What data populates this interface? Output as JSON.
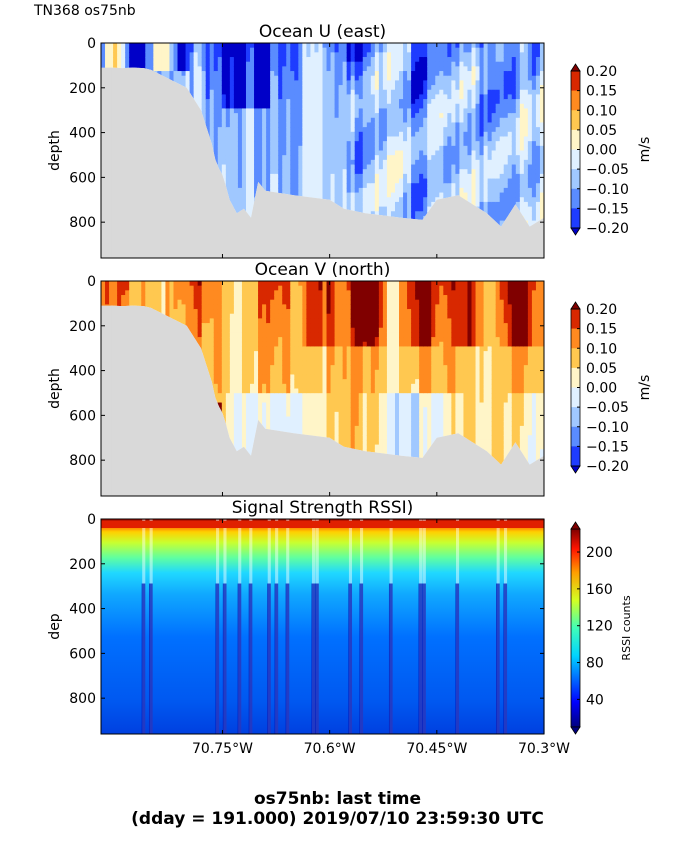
{
  "header": {
    "cruise_label": "TN368 os75nb"
  },
  "footer": {
    "line1": "os75nb: last time",
    "line2": "(dday = 191.000) 2019/07/10 23:59:30 UTC"
  },
  "colors": {
    "bathymetry": "#d9d9d9",
    "background": "#ffffff"
  },
  "chart_data": [
    {
      "type": "heatmap",
      "title": "Ocean U (east)",
      "ylabel": "depth",
      "xlim": [
        -70.92,
        -70.3
      ],
      "ylim": [
        960,
        0
      ],
      "ytick_labels": [
        "0",
        "200",
        "400",
        "600",
        "800"
      ],
      "yticks": [
        0,
        200,
        400,
        600,
        800
      ],
      "xticks": [
        -70.75,
        -70.6,
        -70.45,
        -70.3
      ],
      "colorbar": {
        "label": "m/s",
        "range": [
          -0.2,
          0.2
        ],
        "tick_labels": [
          "0.20",
          "0.15",
          "0.10",
          "0.05",
          "0.00",
          "−0.05",
          "−0.10",
          "−0.15",
          "−0.20"
        ],
        "levels": [
          -0.2,
          -0.15,
          -0.1,
          -0.05,
          0,
          0.05,
          0.1,
          0.15,
          0.2
        ],
        "colors": [
          "#0000c8",
          "#1e3cff",
          "#5a8cff",
          "#a0c8ff",
          "#e0f0ff",
          "#fff5c8",
          "#ffc850",
          "#ff8a20",
          "#d82800",
          "#800000"
        ]
      },
      "bottom_depth_profile": {
        "lon": [
          -70.92,
          -70.912,
          -70.905,
          -70.89,
          -70.875,
          -70.86,
          -70.85,
          -70.8,
          -70.78,
          -70.775,
          -70.77,
          -70.765,
          -70.76,
          -70.755,
          -70.75,
          -70.745,
          -70.74,
          -70.73,
          -70.72,
          -70.71,
          -70.7,
          -70.69,
          -70.65,
          -70.6,
          -70.58,
          -70.55,
          -70.5,
          -70.47,
          -70.45,
          -70.42,
          -70.4,
          -70.38,
          -70.36,
          -70.34,
          -70.32,
          -70.3
        ],
        "depth": [
          120,
          115,
          110,
          112,
          110,
          112,
          120,
          200,
          300,
          350,
          400,
          450,
          520,
          560,
          590,
          640,
          700,
          760,
          740,
          780,
          620,
          660,
          680,
          700,
          740,
          760,
          780,
          790,
          700,
          680,
          720,
          760,
          820,
          720,
          820,
          780
        ]
      },
      "fields_description": "Mostly weak westward (negative) flow; strongest westward cores near -70.73 to -70.68 in upper 200 m; positive (eastward) patches near surface west of -70.75"
    },
    {
      "type": "heatmap",
      "title": "Ocean V (north)",
      "ylabel": "depth",
      "xlim": [
        -70.92,
        -70.3
      ],
      "ylim": [
        960,
        0
      ],
      "ytick_labels": [
        "0",
        "200",
        "400",
        "600",
        "800"
      ],
      "yticks": [
        0,
        200,
        400,
        600,
        800
      ],
      "xticks": [
        -70.75,
        -70.6,
        -70.45,
        -70.3
      ],
      "colorbar": {
        "label": "m/s",
        "range": [
          -0.2,
          0.2
        ],
        "tick_labels": [
          "0.20",
          "0.15",
          "0.10",
          "0.05",
          "0.00",
          "−0.05",
          "−0.10",
          "−0.15",
          "−0.20"
        ],
        "levels": [
          -0.2,
          -0.15,
          -0.1,
          -0.05,
          0,
          0.05,
          0.1,
          0.15,
          0.2
        ]
      },
      "fields_description": "Predominantly northward (positive) flow, strongest 0.15-0.2 m/s cores between -70.62 and -70.35 in upper 300 m"
    },
    {
      "type": "heatmap",
      "title": "Signal Strength RSSI)",
      "ylabel": "dep",
      "xlabel": "",
      "xlim": [
        -70.92,
        -70.3
      ],
      "ylim": [
        960,
        0
      ],
      "ytick_labels": [
        "0",
        "200",
        "400",
        "600",
        "800"
      ],
      "yticks": [
        0,
        200,
        400,
        600,
        800
      ],
      "xticks": [
        -70.75,
        -70.6,
        -70.45,
        -70.3
      ],
      "xtick_labels": [
        "70.75°W",
        "70.6°W",
        "70.45°W",
        "70.3°W"
      ],
      "colorbar": {
        "label": "RSSI counts",
        "range": [
          10,
          225
        ],
        "tick_labels": [
          "200",
          "160",
          "120",
          "80",
          "40"
        ],
        "ticks": [
          200,
          160,
          120,
          80,
          40
        ]
      },
      "fields_description": "High RSSI (red) near surface 0-40 m, decaying to yellow/green by 200 m and blue below 400 m; dark blue vertical stripes indicating low signal"
    }
  ]
}
